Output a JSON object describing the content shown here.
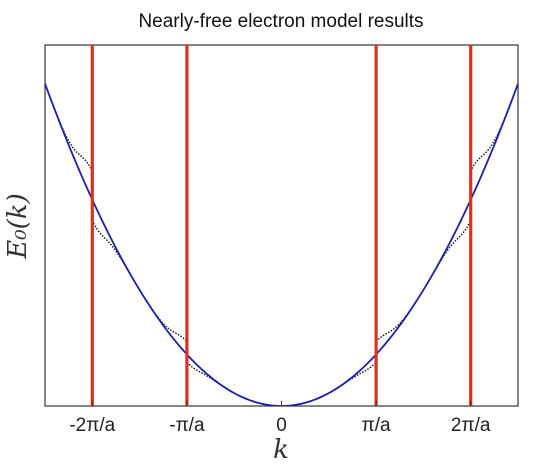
{
  "chart_data": {
    "type": "line",
    "title": "Nearly-free electron model results",
    "xlabel": "k",
    "ylabel": "E₀(k)",
    "x_unit": "π/a",
    "xlim": [
      -2.5,
      2.5
    ],
    "ylim": [
      0,
      7.0
    ],
    "x_ticks": [
      {
        "value": -2,
        "label": "-2π/a"
      },
      {
        "value": -1,
        "label": "-π/a"
      },
      {
        "value": 0,
        "label": "0"
      },
      {
        "value": 1,
        "label": "π/a"
      },
      {
        "value": 2,
        "label": "2π/a"
      }
    ],
    "y_ticks": [],
    "grid": false,
    "zone_boundaries": [
      -2,
      -1,
      1,
      2
    ],
    "series": [
      {
        "style": "solid",
        "x": [
          -2.5,
          -2.25,
          -2.0,
          -1.75,
          -1.5,
          -1.25,
          -1.0,
          -0.75,
          -0.5,
          -0.25,
          0.0,
          0.25,
          0.5,
          0.75,
          1.0,
          1.25,
          1.5,
          1.75,
          2.0,
          2.25,
          2.5
        ],
        "y": [
          6.25,
          5.06,
          4.0,
          3.06,
          2.25,
          1.56,
          1.0,
          0.56,
          0.25,
          0.06,
          0.0,
          0.06,
          0.25,
          0.56,
          1.0,
          1.56,
          2.25,
          3.06,
          4.0,
          5.06,
          6.25
        ]
      },
      {
        "style": "dotted",
        "x": [
          -2.5,
          -2.25,
          -2.0,
          -2.0,
          -1.75,
          -1.5,
          -1.25,
          -1.0,
          -1.0,
          -0.75,
          -0.5,
          -0.25,
          0.0,
          0.25,
          0.5,
          0.75,
          1.0,
          1.0,
          1.25,
          1.5,
          1.75,
          2.0,
          2.0,
          2.25,
          2.5
        ],
        "y": [
          6.3,
          5.25,
          4.55,
          3.6,
          2.95,
          2.2,
          1.48,
          1.25,
          0.85,
          0.55,
          0.25,
          0.06,
          0.0,
          0.06,
          0.25,
          0.55,
          0.85,
          1.25,
          1.48,
          2.2,
          2.95,
          3.6,
          4.55,
          5.25,
          6.3
        ]
      }
    ],
    "colors": {
      "free_electron": "#1f1fa8",
      "bands": "#111111",
      "zone_boundary": "#d8331f",
      "axes": "#333333"
    }
  }
}
